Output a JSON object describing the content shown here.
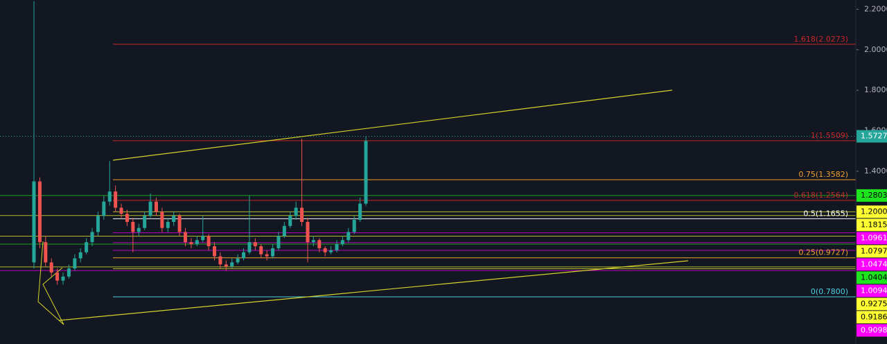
{
  "chart_data": {
    "type": "candlestick",
    "ylim": [
      0.547,
      2.2458
    ],
    "yticks": [
      {
        "value": 2.2,
        "label": "2.2000"
      },
      {
        "value": 2.0,
        "label": "2.0000"
      },
      {
        "value": 1.8,
        "label": "1.8000"
      },
      {
        "value": 1.6,
        "label": "1.6000"
      },
      {
        "value": 1.4,
        "label": "1.4000"
      }
    ],
    "up_color": "#26a69a",
    "down_color": "#ef5350",
    "ohlc": [
      [
        0.95,
        2.24,
        0.92,
        1.35
      ],
      [
        1.35,
        1.37,
        1.02,
        1.05
      ],
      [
        1.05,
        1.08,
        0.93,
        0.95
      ],
      [
        0.95,
        0.97,
        0.88,
        0.9
      ],
      [
        0.9,
        0.92,
        0.84,
        0.86
      ],
      [
        0.86,
        0.9,
        0.84,
        0.88
      ],
      [
        0.88,
        0.94,
        0.87,
        0.92
      ],
      [
        0.92,
        0.99,
        0.91,
        0.97
      ],
      [
        0.97,
        1.02,
        0.95,
        1.0
      ],
      [
        1.0,
        1.07,
        0.99,
        1.05
      ],
      [
        1.05,
        1.12,
        1.03,
        1.1
      ],
      [
        1.1,
        1.2,
        1.08,
        1.18
      ],
      [
        1.18,
        1.28,
        1.16,
        1.25
      ],
      [
        1.25,
        1.45,
        1.23,
        1.3
      ],
      [
        1.3,
        1.33,
        1.2,
        1.22
      ],
      [
        1.22,
        1.24,
        1.17,
        1.19
      ],
      [
        1.19,
        1.21,
        1.13,
        1.15
      ],
      [
        1.15,
        1.17,
        1.0,
        1.1
      ],
      [
        1.1,
        1.14,
        1.08,
        1.12
      ],
      [
        1.12,
        1.2,
        1.11,
        1.18
      ],
      [
        1.18,
        1.29,
        1.17,
        1.25
      ],
      [
        1.25,
        1.27,
        1.18,
        1.2
      ],
      [
        1.2,
        1.22,
        1.1,
        1.12
      ],
      [
        1.12,
        1.17,
        1.1,
        1.15
      ],
      [
        1.15,
        1.2,
        1.13,
        1.18
      ],
      [
        1.18,
        1.19,
        1.08,
        1.1
      ],
      [
        1.1,
        1.12,
        1.03,
        1.05
      ],
      [
        1.05,
        1.07,
        1.02,
        1.04
      ],
      [
        1.04,
        1.08,
        1.03,
        1.06
      ],
      [
        1.06,
        1.18,
        1.05,
        1.08
      ],
      [
        1.08,
        1.09,
        1.01,
        1.03
      ],
      [
        1.03,
        1.05,
        0.96,
        0.98
      ],
      [
        0.98,
        1.0,
        0.92,
        0.94
      ],
      [
        0.94,
        0.96,
        0.91,
        0.93
      ],
      [
        0.93,
        0.97,
        0.92,
        0.95
      ],
      [
        0.95,
        0.99,
        0.94,
        0.97
      ],
      [
        0.97,
        1.02,
        0.96,
        1.0
      ],
      [
        1.0,
        1.28,
        0.99,
        1.05
      ],
      [
        1.05,
        1.07,
        1.01,
        1.03
      ],
      [
        1.03,
        1.04,
        0.97,
        0.99
      ],
      [
        0.99,
        1.01,
        0.96,
        0.98
      ],
      [
        0.98,
        1.04,
        0.97,
        1.02
      ],
      [
        1.02,
        1.1,
        1.01,
        1.08
      ],
      [
        1.08,
        1.15,
        1.07,
        1.13
      ],
      [
        1.13,
        1.2,
        1.12,
        1.18
      ],
      [
        1.18,
        1.25,
        1.16,
        1.22
      ],
      [
        1.22,
        1.56,
        1.13,
        1.15
      ],
      [
        1.15,
        1.17,
        0.95,
        1.05
      ],
      [
        1.05,
        1.08,
        1.03,
        1.06
      ],
      [
        1.06,
        1.07,
        1.0,
        1.02
      ],
      [
        1.02,
        1.03,
        0.98,
        1.0
      ],
      [
        1.0,
        1.03,
        0.99,
        1.01
      ],
      [
        1.01,
        1.06,
        1.0,
        1.04
      ],
      [
        1.04,
        1.08,
        1.03,
        1.06
      ],
      [
        1.06,
        1.12,
        1.05,
        1.1
      ],
      [
        1.1,
        1.18,
        1.09,
        1.16
      ],
      [
        1.16,
        1.27,
        1.15,
        1.24
      ],
      [
        1.24,
        1.5727,
        1.23,
        1.55
      ]
    ],
    "fib_levels": [
      {
        "label": "1.618(2.0273)",
        "value": 2.0273,
        "color": "#c62828"
      },
      {
        "label": "1(1.5509)",
        "value": 1.5509,
        "color": "#c62828"
      },
      {
        "label": "0.75(1.3582)",
        "value": 1.3582,
        "color": "#f0a030"
      },
      {
        "label": "0.618(1.2564)",
        "value": 1.2564,
        "color": "#c62828"
      },
      {
        "label": "0.5(1.1655)",
        "value": 1.1655,
        "color": "#ffffff"
      },
      {
        "label": "0.25(0.9727)",
        "value": 0.9727,
        "color": "#f0a030"
      },
      {
        "label": "0(0.7800)",
        "value": 0.78,
        "color": "#4dd0e1"
      }
    ],
    "price_tags": [
      {
        "value": 1.5727,
        "label": "1.5727",
        "color": "#26a69a",
        "text_color": "#ffffff"
      },
      {
        "value": 1.2803,
        "label": "1.2803",
        "color": "#1ee61e",
        "text_color": "#000000"
      },
      {
        "value": 1.2,
        "label": "1.2000",
        "color": "#ffff33",
        "text_color": "#000000"
      },
      {
        "value": 1.1815,
        "label": "1.1815",
        "color": "#ffff33",
        "text_color": "#000000"
      },
      {
        "value": 1.0961,
        "label": "1.0961",
        "color": "#ff00ff",
        "text_color": "#ffffff"
      },
      {
        "value": 1.0797,
        "label": "1.0797",
        "color": "#ffff33",
        "text_color": "#000000"
      },
      {
        "value": 1.0474,
        "label": "1.0474",
        "color": "#ff00ff",
        "text_color": "#ffffff"
      },
      {
        "value": 1.0404,
        "label": "1.0404",
        "color": "#1ee61e",
        "text_color": "#000000"
      },
      {
        "value": 1.0094,
        "label": "1.0094",
        "color": "#ff00ff",
        "text_color": "#ffffff"
      },
      {
        "value": 0.9275,
        "label": "0.9275",
        "color": "#ffff33",
        "text_color": "#000000"
      },
      {
        "value": 0.9186,
        "label": "0.9186",
        "color": "#ffff33",
        "text_color": "#000000"
      },
      {
        "value": 0.9098,
        "label": "0.9098",
        "color": "#ff00ff",
        "text_color": "#ffffff"
      }
    ]
  }
}
